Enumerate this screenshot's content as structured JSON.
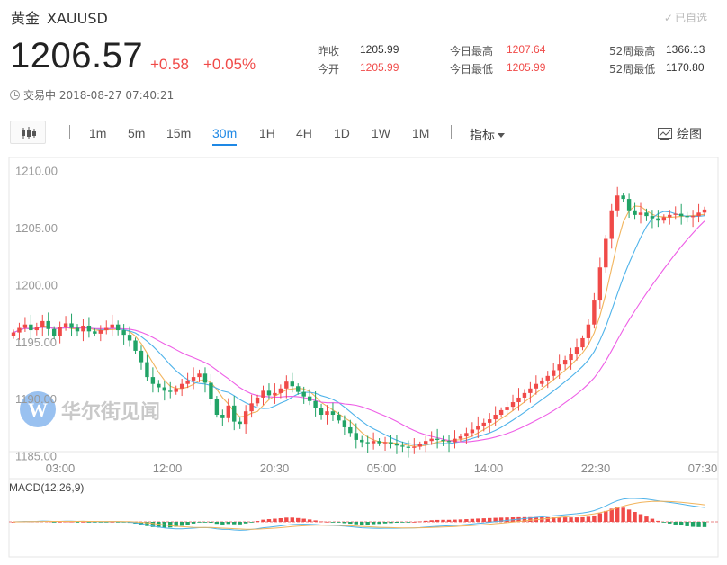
{
  "header": {
    "name": "黄金",
    "symbol": "XAUUSD",
    "favorite_label": "已自选"
  },
  "quote": {
    "price": "1206.57",
    "change": "+0.58",
    "change_pct": "+0.05%",
    "status": "交易中 2018-08-27 07:40:21"
  },
  "stats": [
    {
      "label": "昨收",
      "value": "1205.99"
    },
    {
      "label": "今开",
      "value": "1205.99"
    },
    {
      "label": "今日最高",
      "value": "1207.64"
    },
    {
      "label": "今日最低",
      "value": "1205.99"
    },
    {
      "label": "52周最高",
      "value": "1366.13"
    },
    {
      "label": "52周最低",
      "value": "1170.80"
    }
  ],
  "toolbar": {
    "timeframes": [
      "1m",
      "5m",
      "15m",
      "30m",
      "1H",
      "4H",
      "1D",
      "1W",
      "1M"
    ],
    "active_timeframe": "30m",
    "indicator_label": "指标",
    "draw_label": "绘图"
  },
  "colors": {
    "up": "#f04a48",
    "down": "#21a366",
    "accent": "#1e88e5",
    "ma_short": "#f2b45c",
    "ma_mid": "#4fb3ea",
    "ma_long": "#ee5ee6"
  },
  "watermark": "华尔街见闻",
  "chart_data": {
    "type": "candlestick",
    "interval": "30m",
    "ylim": [
      1186,
      1210.5
    ],
    "y_ticks": [
      "1210.00",
      "1205.00",
      "1200.00",
      "1195.00",
      "1190.00",
      "1185.00"
    ],
    "x_ticks": [
      "03:00",
      "12:00",
      "20:30",
      "05:00",
      "14:00",
      "22:30",
      "07:30"
    ],
    "close_series": [
      1195.8,
      1196.2,
      1196.5,
      1196.0,
      1196.3,
      1196.8,
      1196.1,
      1195.5,
      1196.3,
      1196.6,
      1196.2,
      1195.9,
      1196.4,
      1195.9,
      1195.7,
      1196.0,
      1196.2,
      1196.5,
      1196.0,
      1195.6,
      1195.1,
      1194.2,
      1193.2,
      1191.9,
      1191.3,
      1191.0,
      1190.7,
      1190.6,
      1190.9,
      1191.3,
      1191.6,
      1191.9,
      1192.2,
      1191.4,
      1190.0,
      1188.6,
      1188.3,
      1189.4,
      1188.0,
      1187.8,
      1188.9,
      1189.6,
      1190.1,
      1190.7,
      1190.3,
      1190.5,
      1190.9,
      1191.5,
      1191.1,
      1190.6,
      1190.2,
      1189.8,
      1189.2,
      1188.6,
      1188.9,
      1188.6,
      1188.1,
      1187.5,
      1187.0,
      1186.4,
      1186.2,
      1186.1,
      1186.3,
      1186.1,
      1186.2,
      1186.0,
      1185.9,
      1185.8,
      1185.7,
      1185.8,
      1186.0,
      1186.3,
      1186.5,
      1186.4,
      1186.3,
      1186.2,
      1186.5,
      1186.7,
      1187.0,
      1187.3,
      1187.6,
      1187.9,
      1188.2,
      1188.6,
      1189.0,
      1189.3,
      1189.7,
      1190.1,
      1190.5,
      1190.9,
      1191.3,
      1191.6,
      1192.0,
      1192.5,
      1193.0,
      1193.4,
      1193.9,
      1194.5,
      1195.3,
      1196.5,
      1198.6,
      1201.5,
      1204.0,
      1206.5,
      1207.8,
      1207.5,
      1206.5,
      1206.1,
      1206.3,
      1206.0,
      1205.8,
      1205.6,
      1205.9,
      1206.1,
      1206.2,
      1206.0,
      1205.9,
      1206.0,
      1206.3,
      1206.57
    ],
    "moving_averages": [
      {
        "name": "MA-short",
        "color_key": "ma_short"
      },
      {
        "name": "MA-mid",
        "color_key": "ma_mid"
      },
      {
        "name": "MA-long",
        "color_key": "ma_long"
      }
    ],
    "macd": {
      "label": "MACD(12,26,9)",
      "params": [
        12,
        26,
        9
      ]
    }
  }
}
